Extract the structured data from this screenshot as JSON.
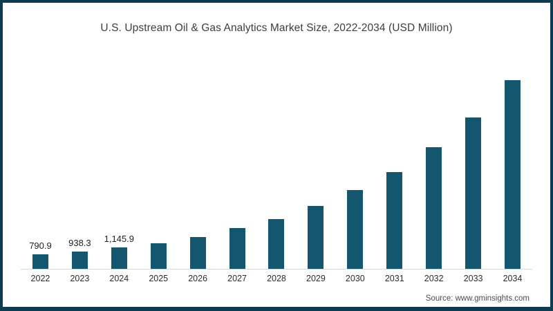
{
  "frame": {
    "border_color": "#0d3c50",
    "background_color": "#ffffff"
  },
  "source": "Source: www.gminsights.com",
  "chart_data": {
    "type": "bar",
    "title": "U.S. Upstream Oil & Gas Analytics Market Size, 2022-2034 (USD Million)",
    "xlabel": "",
    "ylabel": "USD Million",
    "categories": [
      "2022",
      "2023",
      "2024",
      "2025",
      "2026",
      "2027",
      "2028",
      "2029",
      "2030",
      "2031",
      "2032",
      "2033",
      "2034"
    ],
    "values": [
      790.9,
      938.3,
      1145.9,
      1350,
      1700,
      2140,
      2620,
      3300,
      4130,
      5070,
      6340,
      7900,
      9810
    ],
    "data_labels": [
      "790.9",
      "938.3",
      "1,145.9",
      "",
      "",
      "",
      "",
      "",
      "",
      "",
      "",
      "",
      ""
    ],
    "bar_color": "#14566e",
    "value_label_color": "#1f1f1f",
    "axis_line_color": "#d9d9d9",
    "tick_label_color": "#2b2b2b",
    "title_color": "#3d3d3d",
    "source_color": "#4a4a4a",
    "ylim": [
      0,
      10000
    ],
    "grid": false,
    "legend": "none"
  }
}
